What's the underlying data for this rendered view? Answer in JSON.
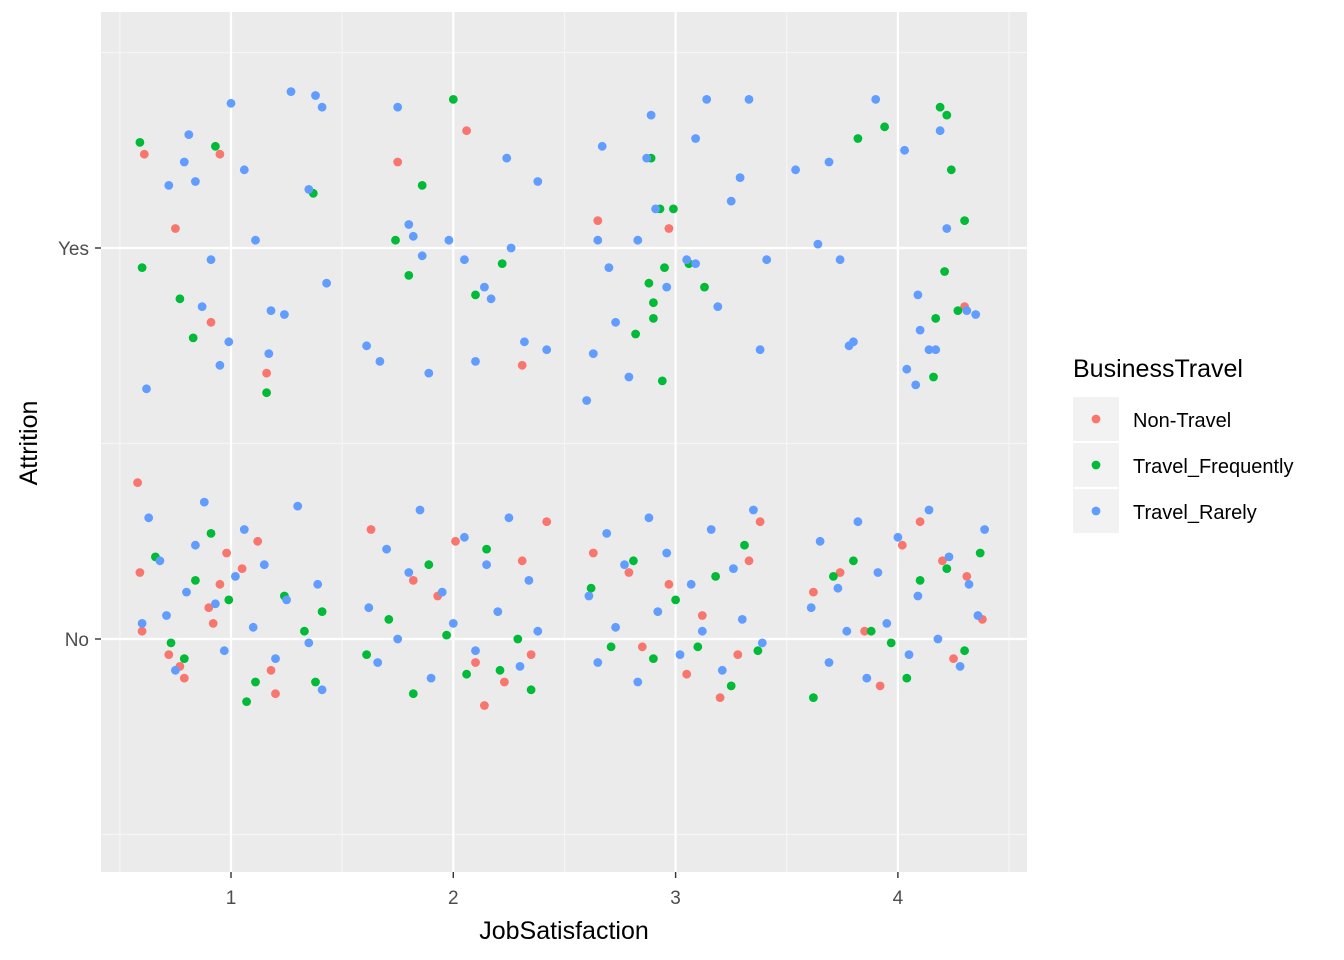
{
  "chart_data": {
    "type": "scatter",
    "jitter": true,
    "title": "",
    "xlabel": "JobSatisfaction",
    "ylabel": "Attrition",
    "x_ticks": [
      "1",
      "2",
      "3",
      "4"
    ],
    "y_ticks": [
      "No",
      "Yes"
    ],
    "xlim": [
      0.45,
      4.6
    ],
    "ylim": [
      0.4,
      2.6
    ],
    "grid": true,
    "legend_position": "right",
    "legend": {
      "title": "BusinessTravel",
      "entries": [
        {
          "name": "Non-Travel",
          "color": "#F8766D"
        },
        {
          "name": "Travel_Frequently",
          "color": "#00BA38"
        },
        {
          "name": "Travel_Rarely",
          "color": "#619CFF"
        }
      ]
    },
    "series": [
      {
        "name": "Non-Travel",
        "points": [
          [
            0.58,
            1.4
          ],
          [
            0.59,
            1.17
          ],
          [
            0.6,
            1.02
          ],
          [
            0.72,
            0.96
          ],
          [
            0.77,
            0.93
          ],
          [
            0.79,
            0.9
          ],
          [
            0.9,
            1.08
          ],
          [
            0.92,
            1.04
          ],
          [
            0.95,
            1.14
          ],
          [
            0.98,
            1.22
          ],
          [
            1.05,
            1.18
          ],
          [
            1.12,
            1.25
          ],
          [
            1.18,
            0.92
          ],
          [
            1.2,
            0.86
          ],
          [
            1.63,
            1.28
          ],
          [
            1.82,
            1.15
          ],
          [
            1.93,
            1.11
          ],
          [
            2.01,
            1.25
          ],
          [
            2.1,
            0.94
          ],
          [
            2.14,
            0.83
          ],
          [
            2.23,
            0.89
          ],
          [
            2.31,
            1.2
          ],
          [
            2.35,
            0.96
          ],
          [
            2.42,
            1.3
          ],
          [
            2.63,
            1.22
          ],
          [
            2.79,
            1.17
          ],
          [
            2.85,
            0.98
          ],
          [
            2.97,
            1.14
          ],
          [
            3.05,
            0.91
          ],
          [
            3.12,
            1.06
          ],
          [
            3.2,
            0.85
          ],
          [
            3.28,
            0.96
          ],
          [
            3.33,
            1.2
          ],
          [
            3.38,
            1.3
          ],
          [
            3.62,
            1.12
          ],
          [
            3.74,
            1.17
          ],
          [
            3.85,
            1.02
          ],
          [
            3.92,
            0.88
          ],
          [
            4.02,
            1.24
          ],
          [
            4.1,
            1.3
          ],
          [
            4.2,
            1.2
          ],
          [
            4.25,
            0.95
          ],
          [
            4.31,
            1.16
          ],
          [
            4.38,
            1.05
          ]
        ]
      },
      {
        "name": "Travel_Frequently",
        "points": [
          [
            0.66,
            1.21
          ],
          [
            0.73,
            0.99
          ],
          [
            0.79,
            0.95
          ],
          [
            0.84,
            1.15
          ],
          [
            0.91,
            1.27
          ],
          [
            0.99,
            1.1
          ],
          [
            1.07,
            0.84
          ],
          [
            1.11,
            0.89
          ],
          [
            1.24,
            1.11
          ],
          [
            1.33,
            1.02
          ],
          [
            1.38,
            0.89
          ],
          [
            1.41,
            1.07
          ],
          [
            1.61,
            0.96
          ],
          [
            1.71,
            1.05
          ],
          [
            1.82,
            0.86
          ],
          [
            1.89,
            1.19
          ],
          [
            1.97,
            1.01
          ],
          [
            2.06,
            0.91
          ],
          [
            2.15,
            1.23
          ],
          [
            2.21,
            0.92
          ],
          [
            2.29,
            1.0
          ],
          [
            2.35,
            0.87
          ],
          [
            2.62,
            1.13
          ],
          [
            2.71,
            0.98
          ],
          [
            2.81,
            1.2
          ],
          [
            2.9,
            0.95
          ],
          [
            3.0,
            1.1
          ],
          [
            3.1,
            0.98
          ],
          [
            3.18,
            1.16
          ],
          [
            3.25,
            0.88
          ],
          [
            3.31,
            1.24
          ],
          [
            3.37,
            0.97
          ],
          [
            3.62,
            0.85
          ],
          [
            3.71,
            1.16
          ],
          [
            3.8,
            1.2
          ],
          [
            3.88,
            1.02
          ],
          [
            3.97,
            0.99
          ],
          [
            4.04,
            0.9
          ],
          [
            4.1,
            1.15
          ],
          [
            4.22,
            1.18
          ],
          [
            4.3,
            0.97
          ],
          [
            4.37,
            1.22
          ]
        ]
      },
      {
        "name": "Travel_Rarely",
        "points": [
          [
            0.6,
            1.04
          ],
          [
            0.63,
            1.31
          ],
          [
            0.68,
            1.2
          ],
          [
            0.71,
            1.06
          ],
          [
            0.75,
            0.92
          ],
          [
            0.8,
            1.12
          ],
          [
            0.84,
            1.24
          ],
          [
            0.88,
            1.35
          ],
          [
            0.93,
            1.09
          ],
          [
            0.97,
            0.97
          ],
          [
            1.02,
            1.16
          ],
          [
            1.06,
            1.28
          ],
          [
            1.1,
            1.03
          ],
          [
            1.15,
            1.19
          ],
          [
            1.2,
            0.95
          ],
          [
            1.25,
            1.1
          ],
          [
            1.3,
            1.34
          ],
          [
            1.35,
            0.99
          ],
          [
            1.39,
            1.14
          ],
          [
            1.41,
            0.87
          ],
          [
            1.62,
            1.08
          ],
          [
            1.66,
            0.94
          ],
          [
            1.7,
            1.23
          ],
          [
            1.75,
            1.0
          ],
          [
            1.8,
            1.17
          ],
          [
            1.85,
            1.33
          ],
          [
            1.9,
            0.9
          ],
          [
            1.95,
            1.12
          ],
          [
            2.0,
            1.04
          ],
          [
            2.05,
            1.26
          ],
          [
            2.1,
            0.97
          ],
          [
            2.15,
            1.19
          ],
          [
            2.2,
            1.07
          ],
          [
            2.25,
            1.31
          ],
          [
            2.3,
            0.93
          ],
          [
            2.34,
            1.15
          ],
          [
            2.38,
            1.02
          ],
          [
            2.61,
            1.11
          ],
          [
            2.65,
            0.94
          ],
          [
            2.69,
            1.27
          ],
          [
            2.73,
            1.03
          ],
          [
            2.77,
            1.19
          ],
          [
            2.83,
            0.89
          ],
          [
            2.88,
            1.31
          ],
          [
            2.92,
            1.07
          ],
          [
            2.96,
            1.22
          ],
          [
            3.02,
            0.96
          ],
          [
            3.07,
            1.14
          ],
          [
            3.12,
            1.02
          ],
          [
            3.16,
            1.28
          ],
          [
            3.21,
            0.92
          ],
          [
            3.26,
            1.18
          ],
          [
            3.3,
            1.05
          ],
          [
            3.35,
            1.33
          ],
          [
            3.39,
            0.99
          ],
          [
            3.61,
            1.08
          ],
          [
            3.65,
            1.25
          ],
          [
            3.69,
            0.94
          ],
          [
            3.73,
            1.13
          ],
          [
            3.77,
            1.02
          ],
          [
            3.82,
            1.3
          ],
          [
            3.86,
            0.9
          ],
          [
            3.91,
            1.17
          ],
          [
            3.95,
            1.04
          ],
          [
            4.0,
            1.26
          ],
          [
            4.05,
            0.96
          ],
          [
            4.09,
            1.11
          ],
          [
            4.14,
            1.33
          ],
          [
            4.18,
            1.0
          ],
          [
            4.23,
            1.21
          ],
          [
            4.28,
            0.93
          ],
          [
            4.32,
            1.14
          ],
          [
            4.36,
            1.06
          ],
          [
            4.39,
            1.28
          ]
        ]
      }
    ],
    "series_yes": [
      {
        "name": "Non-Travel",
        "points": [
          [
            0.61,
            2.24
          ],
          [
            0.75,
            2.05
          ],
          [
            0.91,
            1.81
          ],
          [
            0.95,
            2.24
          ],
          [
            1.16,
            1.68
          ],
          [
            1.75,
            2.22
          ],
          [
            2.06,
            2.3
          ],
          [
            2.31,
            1.7
          ],
          [
            2.65,
            2.07
          ],
          [
            2.97,
            2.05
          ],
          [
            4.3,
            1.85
          ]
        ]
      },
      {
        "name": "Travel_Frequently",
        "points": [
          [
            0.59,
            2.27
          ],
          [
            0.6,
            1.95
          ],
          [
            0.77,
            1.87
          ],
          [
            0.83,
            1.77
          ],
          [
            0.93,
            2.26
          ],
          [
            1.16,
            1.63
          ],
          [
            1.37,
            2.14
          ],
          [
            1.74,
            2.02
          ],
          [
            1.8,
            1.93
          ],
          [
            1.86,
            2.16
          ],
          [
            2.0,
            2.38
          ],
          [
            2.1,
            1.88
          ],
          [
            2.22,
            1.96
          ],
          [
            2.82,
            1.78
          ],
          [
            2.88,
            1.91
          ],
          [
            2.89,
            2.23
          ],
          [
            2.9,
            1.86
          ],
          [
            2.9,
            1.82
          ],
          [
            2.93,
            2.1
          ],
          [
            2.94,
            1.66
          ],
          [
            2.95,
            1.95
          ],
          [
            2.99,
            2.1
          ],
          [
            3.06,
            1.96
          ],
          [
            3.13,
            1.9
          ],
          [
            3.82,
            2.28
          ],
          [
            3.94,
            2.31
          ],
          [
            4.16,
            1.67
          ],
          [
            4.17,
            1.82
          ],
          [
            4.19,
            2.36
          ],
          [
            4.21,
            1.94
          ],
          [
            4.22,
            2.34
          ],
          [
            4.24,
            2.2
          ],
          [
            4.27,
            1.84
          ],
          [
            4.3,
            2.07
          ]
        ]
      },
      {
        "name": "Travel_Rarely",
        "points": [
          [
            0.62,
            1.64
          ],
          [
            0.72,
            2.16
          ],
          [
            0.79,
            2.22
          ],
          [
            0.81,
            2.29
          ],
          [
            0.84,
            2.17
          ],
          [
            0.87,
            1.85
          ],
          [
            0.91,
            1.97
          ],
          [
            0.95,
            1.7
          ],
          [
            0.99,
            1.76
          ],
          [
            1.0,
            2.37
          ],
          [
            1.06,
            2.2
          ],
          [
            1.11,
            2.02
          ],
          [
            1.17,
            1.73
          ],
          [
            1.18,
            1.84
          ],
          [
            1.24,
            1.83
          ],
          [
            1.27,
            2.4
          ],
          [
            1.35,
            2.15
          ],
          [
            1.38,
            2.39
          ],
          [
            1.41,
            2.36
          ],
          [
            1.43,
            1.91
          ],
          [
            1.61,
            1.75
          ],
          [
            1.67,
            1.71
          ],
          [
            1.75,
            2.36
          ],
          [
            1.8,
            2.06
          ],
          [
            1.82,
            2.03
          ],
          [
            1.86,
            1.98
          ],
          [
            1.89,
            1.68
          ],
          [
            1.98,
            2.02
          ],
          [
            2.05,
            1.97
          ],
          [
            2.1,
            1.71
          ],
          [
            2.14,
            1.9
          ],
          [
            2.17,
            1.87
          ],
          [
            2.24,
            2.23
          ],
          [
            2.26,
            2.0
          ],
          [
            2.32,
            1.76
          ],
          [
            2.38,
            2.17
          ],
          [
            2.42,
            1.74
          ],
          [
            2.6,
            1.61
          ],
          [
            2.63,
            1.73
          ],
          [
            2.65,
            2.02
          ],
          [
            2.67,
            2.26
          ],
          [
            2.7,
            1.95
          ],
          [
            2.73,
            1.81
          ],
          [
            2.79,
            1.67
          ],
          [
            2.83,
            2.02
          ],
          [
            2.87,
            2.23
          ],
          [
            2.89,
            2.34
          ],
          [
            2.91,
            2.1
          ],
          [
            2.96,
            1.9
          ],
          [
            3.05,
            1.97
          ],
          [
            3.09,
            1.96
          ],
          [
            3.09,
            2.28
          ],
          [
            3.14,
            2.38
          ],
          [
            3.19,
            1.85
          ],
          [
            3.25,
            2.12
          ],
          [
            3.29,
            2.18
          ],
          [
            3.33,
            2.38
          ],
          [
            3.38,
            1.74
          ],
          [
            3.41,
            1.97
          ],
          [
            3.54,
            2.2
          ],
          [
            3.64,
            2.01
          ],
          [
            3.69,
            2.22
          ],
          [
            3.74,
            1.97
          ],
          [
            3.78,
            1.75
          ],
          [
            3.8,
            1.76
          ],
          [
            3.9,
            2.38
          ],
          [
            4.03,
            2.25
          ],
          [
            4.04,
            1.69
          ],
          [
            4.08,
            1.65
          ],
          [
            4.09,
            1.88
          ],
          [
            4.1,
            1.79
          ],
          [
            4.14,
            1.74
          ],
          [
            4.17,
            1.74
          ],
          [
            4.19,
            2.3
          ],
          [
            4.22,
            2.05
          ],
          [
            4.31,
            1.84
          ],
          [
            4.35,
            1.83
          ]
        ]
      }
    ]
  }
}
